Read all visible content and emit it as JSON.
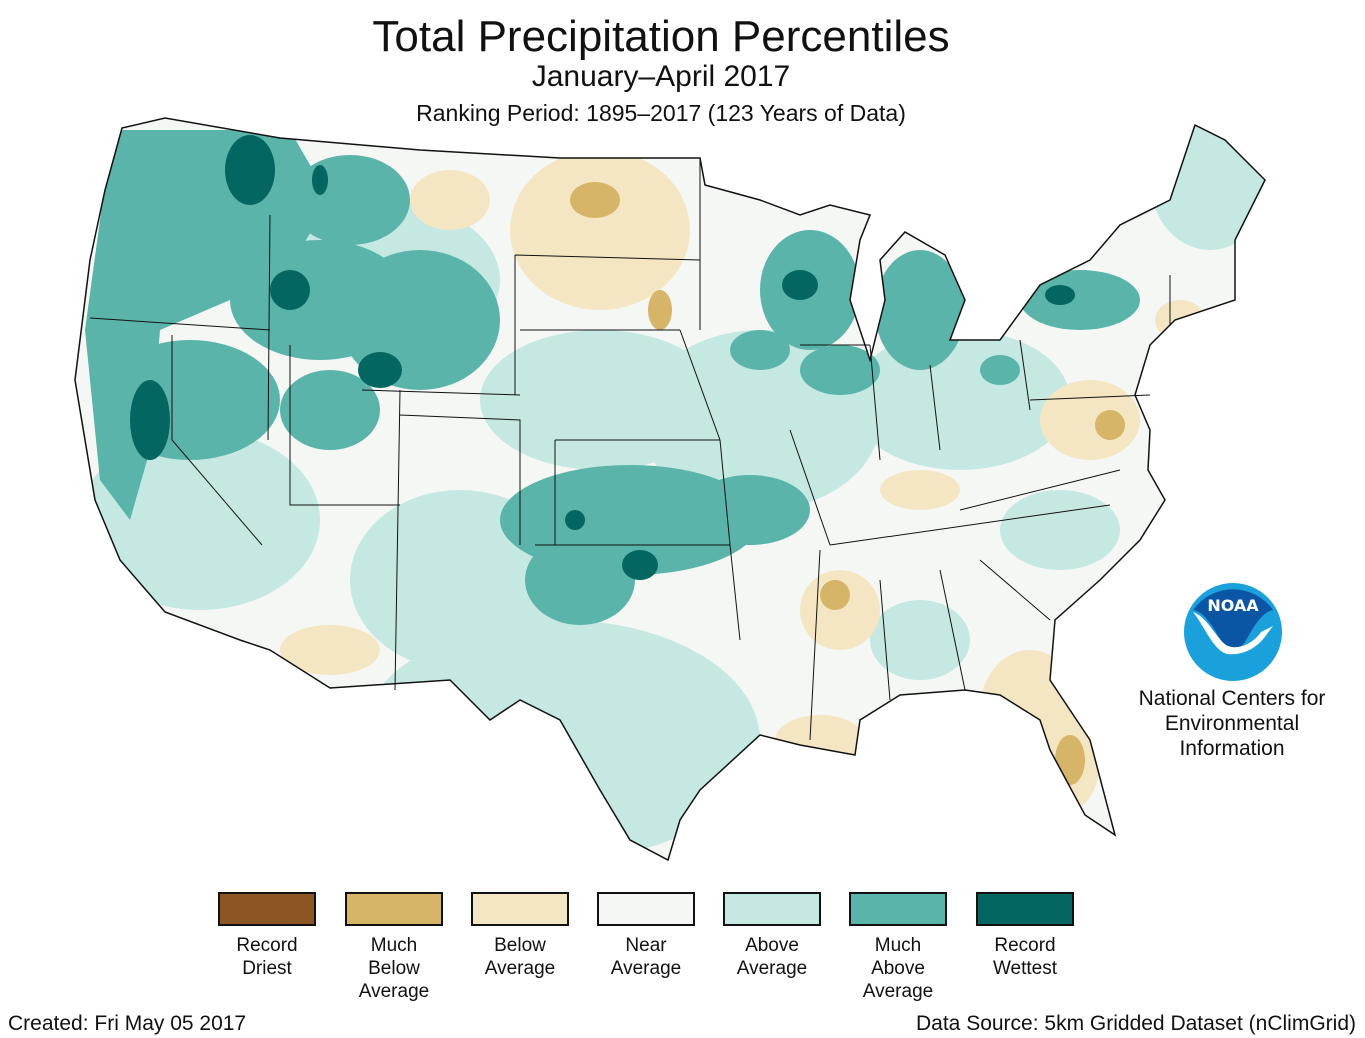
{
  "header": {
    "title": "Total Precipitation Percentiles",
    "subtitle": "January–April 2017",
    "ranking_period": "Ranking Period: 1895–2017 (123 Years of Data)"
  },
  "legend": [
    {
      "label": "Record\nDriest",
      "color": "#8c5524"
    },
    {
      "label": "Much\nBelow\nAverage",
      "color": "#d6b468"
    },
    {
      "label": "Below\nAverage",
      "color": "#f5e6c3"
    },
    {
      "label": "Near\nAverage",
      "color": "#f5f7f5"
    },
    {
      "label": "Above\nAverage",
      "color": "#c6e8e2"
    },
    {
      "label": "Much\nAbove\nAverage",
      "color": "#5ab4aa"
    },
    {
      "label": "Record\nWettest",
      "color": "#036660"
    }
  ],
  "logo": {
    "text": "NOAA",
    "org": "National Centers for\nEnvironmental\nInformation",
    "dark_blue": "#0a55a4",
    "light_blue": "#1aa1dc"
  },
  "footer": {
    "created": "Created: Fri May 05 2017",
    "source": "Data Source: 5km Gridded Dataset (nClimGrid)"
  }
}
